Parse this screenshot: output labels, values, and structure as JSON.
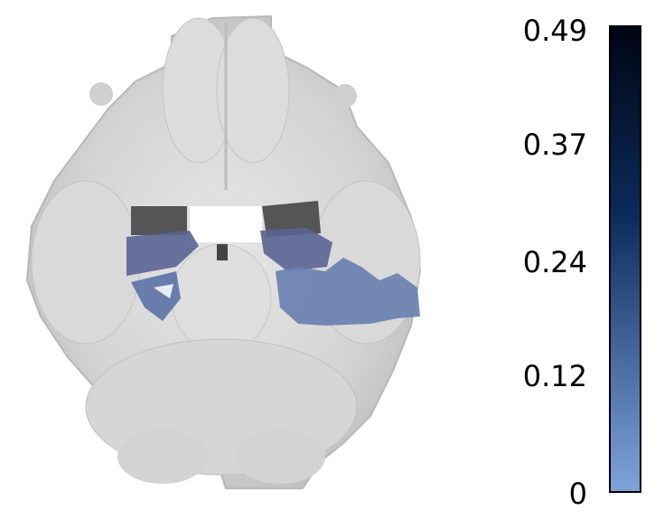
{
  "colorbar": {
    "ticks": [
      "0.49",
      "0.37",
      "0.24",
      "0.12",
      "0"
    ],
    "cmap": {
      "top_color": "#000514",
      "mid_color": "#0b2a5a",
      "bottom_color": "#7fa3d9"
    }
  },
  "image": {
    "brain_gray": "#d2d2d2",
    "brain_edge": "#bdbdbd",
    "ventricle_dark": "#4a4a4a",
    "overlay_color": "#5b6fa0",
    "overlay_dark": "#555566"
  }
}
